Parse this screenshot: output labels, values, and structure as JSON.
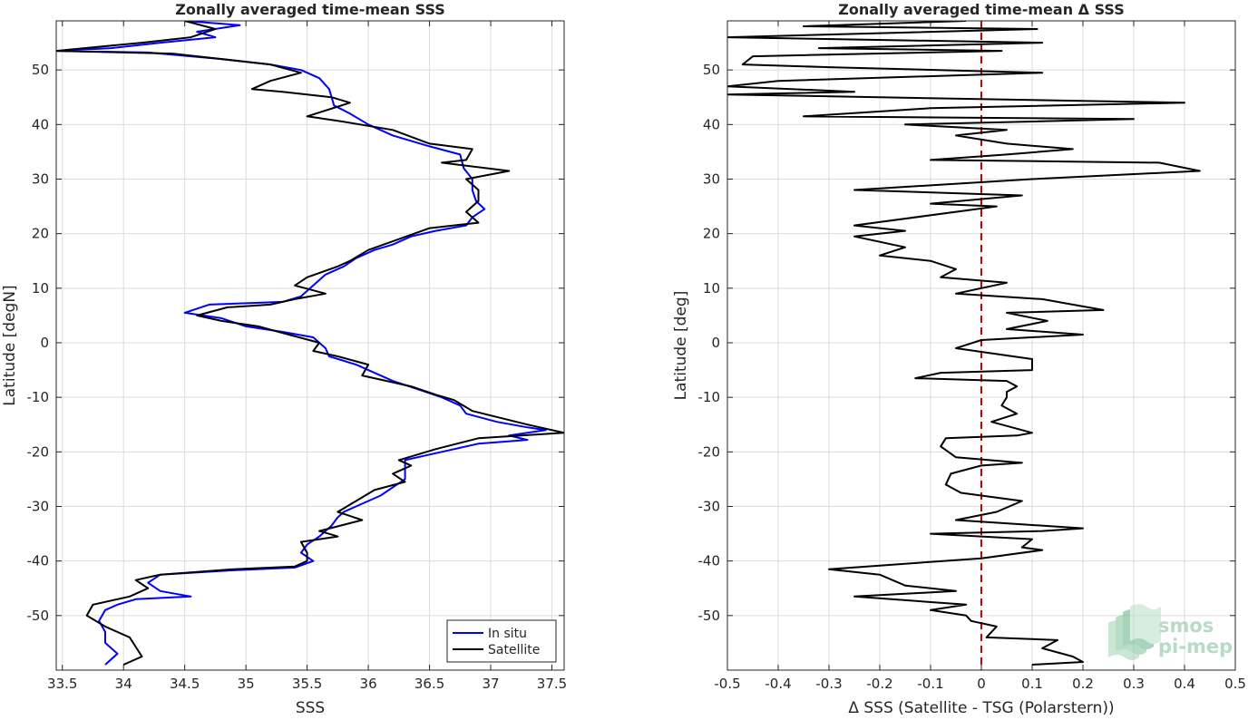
{
  "chart_data": [
    {
      "type": "line",
      "title": "Zonally averaged time-mean SSS",
      "xlabel": "SSS",
      "ylabel": "Latitude [degN]",
      "xlim": [
        33.45,
        37.6
      ],
      "ylim": [
        -60,
        59
      ],
      "xticks": [
        "33.5",
        "34",
        "34.5",
        "35",
        "35.5",
        "36",
        "36.5",
        "37",
        "37.5"
      ],
      "yticks": [
        "50",
        "40",
        "30",
        "20",
        "10",
        "0",
        "-10",
        "-20",
        "-30",
        "-40",
        "-50"
      ],
      "grid": true,
      "legend_position": "bottom-right",
      "series": [
        {
          "name": "In situ",
          "color": "#0000ff",
          "points": [
            [
              34.5,
              59
            ],
            [
              34.95,
              58.2
            ],
            [
              34.6,
              57
            ],
            [
              34.75,
              56
            ],
            [
              34.3,
              55
            ],
            [
              33.9,
              54
            ],
            [
              33.45,
              53.5
            ],
            [
              34.2,
              53.2
            ],
            [
              34.8,
              52
            ],
            [
              35.2,
              51
            ],
            [
              35.45,
              50
            ],
            [
              35.6,
              48.5
            ],
            [
              35.68,
              46.5
            ],
            [
              35.7,
              45
            ],
            [
              35.72,
              43.5
            ],
            [
              35.85,
              42
            ],
            [
              36,
              40
            ],
            [
              36.2,
              38
            ],
            [
              36.5,
              36
            ],
            [
              36.75,
              34.5
            ],
            [
              36.78,
              32
            ],
            [
              36.85,
              30
            ],
            [
              36.85,
              28
            ],
            [
              36.88,
              26
            ],
            [
              36.95,
              24.5
            ],
            [
              36.85,
              23
            ],
            [
              36.8,
              21.5
            ],
            [
              36.55,
              20.5
            ],
            [
              36.35,
              19.5
            ],
            [
              36.2,
              18
            ],
            [
              36.05,
              17
            ],
            [
              35.9,
              15.5
            ],
            [
              35.8,
              14
            ],
            [
              35.65,
              12.5
            ],
            [
              35.55,
              10.5
            ],
            [
              35.45,
              8.5
            ],
            [
              35.3,
              7.5
            ],
            [
              34.7,
              7
            ],
            [
              34.5,
              5.5
            ],
            [
              34.8,
              4.5
            ],
            [
              35,
              3
            ],
            [
              35.3,
              2
            ],
            [
              35.55,
              1
            ],
            [
              35.65,
              -1
            ],
            [
              35.68,
              -2.5
            ],
            [
              35.9,
              -4
            ],
            [
              36.05,
              -5.5
            ],
            [
              36.2,
              -7
            ],
            [
              36.4,
              -8.5
            ],
            [
              36.6,
              -10
            ],
            [
              36.75,
              -11.5
            ],
            [
              36.8,
              -13
            ],
            [
              37.05,
              -14.5
            ],
            [
              37.3,
              -15.5
            ],
            [
              37.45,
              -16
            ],
            [
              37.15,
              -17
            ],
            [
              37.3,
              -17.8
            ],
            [
              36.9,
              -18.5
            ],
            [
              36.7,
              -19.5
            ],
            [
              36.5,
              -20.5
            ],
            [
              36.3,
              -21.5
            ],
            [
              36.3,
              -23
            ],
            [
              36.3,
              -25
            ],
            [
              36.2,
              -26.5
            ],
            [
              36.1,
              -28
            ],
            [
              35.95,
              -29.5
            ],
            [
              35.8,
              -31
            ],
            [
              35.75,
              -32
            ],
            [
              35.7,
              -33.5
            ],
            [
              35.6,
              -35.5
            ],
            [
              35.5,
              -37
            ],
            [
              35.45,
              -38.5
            ],
            [
              35.55,
              -40
            ],
            [
              35.4,
              -41.2
            ],
            [
              34.9,
              -41.7
            ],
            [
              34.3,
              -42.5
            ],
            [
              34.2,
              -44
            ],
            [
              34.3,
              -45.5
            ],
            [
              34.55,
              -46.5
            ],
            [
              34.1,
              -47
            ],
            [
              33.95,
              -48
            ],
            [
              33.85,
              -49
            ],
            [
              33.8,
              -51
            ],
            [
              33.85,
              -53
            ],
            [
              33.85,
              -55
            ],
            [
              33.95,
              -57
            ],
            [
              33.85,
              -59
            ]
          ]
        },
        {
          "name": "Satellite",
          "color": "#000000",
          "points": [
            [
              34.5,
              59
            ],
            [
              34.75,
              57.5
            ],
            [
              34.55,
              56
            ],
            [
              34.15,
              55
            ],
            [
              33.45,
              53.5
            ],
            [
              34.4,
              53
            ],
            [
              35.2,
              51
            ],
            [
              35.45,
              49.5
            ],
            [
              35.2,
              48
            ],
            [
              35.05,
              46.5
            ],
            [
              35.3,
              46
            ],
            [
              35.7,
              45
            ],
            [
              35.85,
              44
            ],
            [
              35.5,
              41.5
            ],
            [
              35.8,
              40.5
            ],
            [
              36.2,
              39
            ],
            [
              36.5,
              36.5
            ],
            [
              36.85,
              35.5
            ],
            [
              36.8,
              33.5
            ],
            [
              36.6,
              33
            ],
            [
              37.15,
              31.5
            ],
            [
              36.8,
              30
            ],
            [
              36.9,
              28
            ],
            [
              36.9,
              26
            ],
            [
              36.8,
              24
            ],
            [
              36.9,
              22
            ],
            [
              36.5,
              21
            ],
            [
              36.25,
              19
            ],
            [
              36,
              17
            ],
            [
              35.85,
              15
            ],
            [
              35.75,
              14
            ],
            [
              35.5,
              12
            ],
            [
              35.4,
              10.5
            ],
            [
              35.65,
              9
            ],
            [
              35.4,
              8
            ],
            [
              35.2,
              7
            ],
            [
              34.85,
              6.5
            ],
            [
              34.6,
              5
            ],
            [
              34.8,
              4
            ],
            [
              35.1,
              3
            ],
            [
              35.35,
              1.5
            ],
            [
              35.6,
              0
            ],
            [
              35.55,
              -1.5
            ],
            [
              35.75,
              -2.5
            ],
            [
              36,
              -4
            ],
            [
              35.95,
              -6
            ],
            [
              36.35,
              -8
            ],
            [
              36.55,
              -9.5
            ],
            [
              36.7,
              -10.5
            ],
            [
              36.85,
              -12.5
            ],
            [
              37.3,
              -15
            ],
            [
              37.6,
              -16.5
            ],
            [
              36.9,
              -17.5
            ],
            [
              36.55,
              -19.5
            ],
            [
              36.25,
              -21.5
            ],
            [
              36.35,
              -22.5
            ],
            [
              36.2,
              -24
            ],
            [
              36.3,
              -25.5
            ],
            [
              36.05,
              -27
            ],
            [
              35.9,
              -29
            ],
            [
              35.75,
              -31
            ],
            [
              35.95,
              -32.5
            ],
            [
              35.6,
              -34.5
            ],
            [
              35.75,
              -35.5
            ],
            [
              35.45,
              -36.5
            ],
            [
              35.5,
              -38.5
            ],
            [
              35.5,
              -40
            ],
            [
              35.4,
              -41
            ],
            [
              34.9,
              -41.5
            ],
            [
              34.3,
              -42.5
            ],
            [
              34.1,
              -43.5
            ],
            [
              34.2,
              -45
            ],
            [
              34.05,
              -46.5
            ],
            [
              33.75,
              -48
            ],
            [
              33.7,
              -50
            ],
            [
              33.85,
              -52
            ],
            [
              34.05,
              -54
            ],
            [
              34.15,
              -57.5
            ],
            [
              34,
              -59
            ]
          ]
        }
      ]
    },
    {
      "type": "line",
      "title": "Zonally averaged time-mean Δ SSS",
      "xlabel": "Δ SSS (Satellite - TSG (Polarstern))",
      "ylabel": "Latitude [deg]",
      "xlim": [
        -0.5,
        0.5
      ],
      "ylim": [
        -60,
        59
      ],
      "xticks": [
        "-0.5",
        "-0.4",
        "-0.3",
        "-0.2",
        "-0.1",
        "0",
        "0.1",
        "0.2",
        "0.3",
        "0.4",
        "0.5"
      ],
      "yticks": [
        "50",
        "40",
        "30",
        "20",
        "10",
        "0",
        "-10",
        "-20",
        "-30",
        "-40",
        "-50"
      ],
      "grid": true,
      "reference_line": {
        "x": 0,
        "color": "#d40000",
        "style": "dashed"
      },
      "series": [
        {
          "color": "#000000",
          "points": [
            [
              -0.03,
              59
            ],
            [
              -0.35,
              58
            ],
            [
              0.11,
              57.5
            ],
            [
              -0.5,
              56
            ],
            [
              0.12,
              55
            ],
            [
              -0.32,
              54
            ],
            [
              0.04,
              53.5
            ],
            [
              -0.45,
              52.5
            ],
            [
              -0.47,
              51
            ],
            [
              -0.3,
              50.5
            ],
            [
              0.12,
              49.5
            ],
            [
              -0.4,
              48
            ],
            [
              -0.5,
              47
            ],
            [
              -0.25,
              46
            ],
            [
              -0.5,
              45.5
            ],
            [
              0.4,
              44
            ],
            [
              -0.1,
              43
            ],
            [
              -0.35,
              41.5
            ],
            [
              0.3,
              41
            ],
            [
              -0.15,
              40
            ],
            [
              0.05,
              39
            ],
            [
              -0.05,
              38
            ],
            [
              0.05,
              36.5
            ],
            [
              0.18,
              35.5
            ],
            [
              0.05,
              34.5
            ],
            [
              -0.1,
              33.5
            ],
            [
              0.35,
              33
            ],
            [
              0.43,
              31.5
            ],
            [
              0.1,
              30
            ],
            [
              -0.25,
              28
            ],
            [
              0.08,
              27
            ],
            [
              -0.1,
              25.5
            ],
            [
              0.03,
              25
            ],
            [
              -0.05,
              24
            ],
            [
              -0.25,
              21.5
            ],
            [
              -0.15,
              20.5
            ],
            [
              -0.25,
              19.5
            ],
            [
              -0.15,
              17.5
            ],
            [
              -0.2,
              16
            ],
            [
              -0.1,
              15
            ],
            [
              -0.05,
              13.5
            ],
            [
              -0.08,
              12
            ],
            [
              0.05,
              11
            ],
            [
              -0.05,
              9
            ],
            [
              0.12,
              8
            ],
            [
              0.24,
              6
            ],
            [
              0.05,
              5.5
            ],
            [
              0.13,
              4
            ],
            [
              0.05,
              2.5
            ],
            [
              0.2,
              1.5
            ],
            [
              0,
              0.5
            ],
            [
              -0.05,
              -1
            ],
            [
              0.1,
              -3
            ],
            [
              0.1,
              -5
            ],
            [
              -0.08,
              -5.5
            ],
            [
              -0.13,
              -6.5
            ],
            [
              0.05,
              -7
            ],
            [
              0.07,
              -8
            ],
            [
              0.05,
              -9
            ],
            [
              0.05,
              -10
            ],
            [
              0.04,
              -11.5
            ],
            [
              0.07,
              -13
            ],
            [
              0.02,
              -14.5
            ],
            [
              0.1,
              -16.5
            ],
            [
              0.07,
              -17
            ],
            [
              -0.07,
              -17.5
            ],
            [
              -0.08,
              -19
            ],
            [
              -0.05,
              -21
            ],
            [
              0.08,
              -22
            ],
            [
              0,
              -22.5
            ],
            [
              -0.06,
              -24
            ],
            [
              -0.07,
              -26
            ],
            [
              -0.04,
              -27.5
            ],
            [
              0.08,
              -29
            ],
            [
              0.03,
              -31
            ],
            [
              -0.05,
              -32.5
            ],
            [
              0.2,
              -34
            ],
            [
              0.12,
              -34.5
            ],
            [
              -0.1,
              -35
            ],
            [
              0.1,
              -36
            ],
            [
              0.08,
              -37.5
            ],
            [
              0.12,
              -38
            ],
            [
              0,
              -39.5
            ],
            [
              -0.3,
              -41.5
            ],
            [
              -0.2,
              -42.5
            ],
            [
              -0.15,
              -44.5
            ],
            [
              -0.05,
              -45.5
            ],
            [
              -0.25,
              -46.5
            ],
            [
              -0.03,
              -48
            ],
            [
              -0.1,
              -49
            ],
            [
              -0.03,
              -50
            ],
            [
              -0.02,
              -51
            ],
            [
              0.03,
              -52
            ],
            [
              0.01,
              -54
            ],
            [
              0.15,
              -54.5
            ],
            [
              0.12,
              -56
            ],
            [
              0.18,
              -57.5
            ],
            [
              0.2,
              -58.5
            ],
            [
              0.1,
              -59
            ]
          ]
        }
      ]
    }
  ],
  "watermark": {
    "line1": "smos",
    "line2": "pi-mep"
  }
}
